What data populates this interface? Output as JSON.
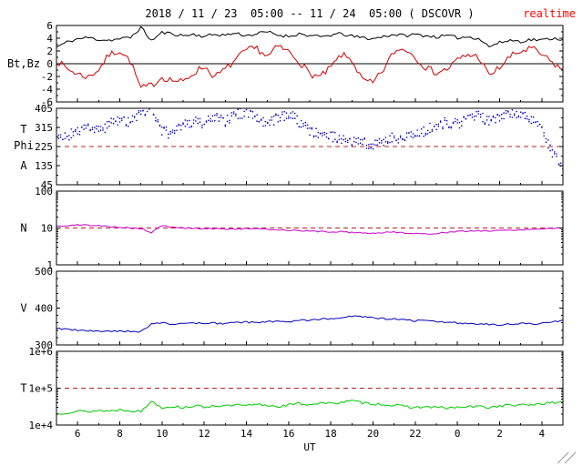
{
  "header": {
    "title": "2018 / 11 / 23  05:00 -- 11 / 24  05:00 ( DSCOVR )",
    "realtime_label": "realtime"
  },
  "style": {
    "realtime_color": "#ff0000",
    "refline_color": "#bb2222",
    "frame_color": "#000000",
    "background": "#ffffff"
  },
  "chart_data": {
    "type": "multi-panel-time-series",
    "title": "2018 / 11 / 23  05:00 -- 11 / 24  05:00 ( DSCOVR )",
    "xlabel": "UT",
    "x_axis": {
      "xmin": 5,
      "xmax": 29,
      "minor_step": 1,
      "x": [
        5,
        5.5,
        6,
        6.5,
        7,
        7.5,
        8,
        8.5,
        9,
        9.5,
        10,
        10.5,
        11,
        11.5,
        12,
        12.5,
        13,
        13.5,
        14,
        14.5,
        15,
        15.5,
        16,
        16.5,
        17,
        17.5,
        18,
        18.5,
        19,
        19.5,
        20,
        20.5,
        21,
        21.5,
        22,
        22.5,
        23,
        23.5,
        24,
        24.5,
        25,
        25.5,
        26,
        26.5,
        27,
        27.5,
        28,
        28.5,
        29
      ],
      "ticks": [
        {
          "v": 6,
          "label": "6"
        },
        {
          "v": 8,
          "label": "8"
        },
        {
          "v": 10,
          "label": "10"
        },
        {
          "v": 12,
          "label": "12"
        },
        {
          "v": 14,
          "label": "14"
        },
        {
          "v": 16,
          "label": "16"
        },
        {
          "v": 18,
          "label": "18"
        },
        {
          "v": 20,
          "label": "20"
        },
        {
          "v": 22,
          "label": "22"
        },
        {
          "v": 24,
          "label": "0"
        },
        {
          "v": 26,
          "label": "2"
        },
        {
          "v": 28,
          "label": "4"
        }
      ]
    },
    "panels": [
      {
        "id": "bt-bz",
        "type": "line",
        "left_labels": [
          "Bt,Bz"
        ],
        "log": false,
        "ylim": [
          -6,
          6
        ],
        "yminor_step": 1,
        "yticks": [
          {
            "v": 6,
            "label": "6"
          },
          {
            "v": 4,
            "label": "4"
          },
          {
            "v": 2,
            "label": "2"
          },
          {
            "v": 0,
            "label": "0"
          },
          {
            "v": -2,
            "label": "-2"
          },
          {
            "v": -4,
            "label": "-4"
          },
          {
            "v": -6,
            "label": "-6"
          }
        ],
        "solid_hline": 0,
        "series": [
          {
            "name": "Bt",
            "color": "#000000",
            "noise": 0.25,
            "seed": 11,
            "values": [
              2.6,
              3.4,
              3.9,
              4.1,
              3.8,
              3.7,
              3.9,
              4.1,
              5.7,
              3.6,
              4.9,
              4.7,
              4.4,
              4.6,
              4.3,
              4.6,
              4.5,
              4.8,
              4.4,
              4.7,
              5.0,
              4.5,
              4.3,
              4.7,
              4.4,
              4.2,
              4.5,
              4.7,
              4.3,
              4.1,
              3.9,
              4.3,
              4.6,
              4.4,
              4.6,
              4.4,
              4.2,
              4.4,
              4.1,
              4.2,
              4.0,
              2.7,
              3.3,
              3.7,
              3.5,
              3.8,
              3.7,
              4.0,
              3.8
            ]
          },
          {
            "name": "Bz",
            "color": "#cc0000",
            "noise": 0.55,
            "seed": 7,
            "values": [
              0.5,
              -0.8,
              -1.6,
              -2.1,
              -0.9,
              1.4,
              2.1,
              0.4,
              -3.9,
              -3.4,
              -2.1,
              -2.6,
              -2.9,
              -1.4,
              -0.4,
              -2.1,
              -0.9,
              0.6,
              2.1,
              2.4,
              1.1,
              2.7,
              1.9,
              0.4,
              -1.6,
              -2.1,
              -0.6,
              1.4,
              0.6,
              -2.6,
              -3.1,
              -0.9,
              1.9,
              2.4,
              1.1,
              -0.6,
              -1.4,
              -0.9,
              0.6,
              1.4,
              1.1,
              -1.9,
              -0.6,
              1.1,
              1.9,
              2.4,
              1.4,
              0.1,
              -0.9
            ]
          }
        ]
      },
      {
        "id": "phi-angle",
        "type": "scatter",
        "left_labels": [
          "T",
          "Phi",
          "A"
        ],
        "log": false,
        "ylim": [
          45,
          405
        ],
        "yminor_step": 45,
        "yticks": [
          {
            "v": 405,
            "label": "405"
          },
          {
            "v": 315,
            "label": "315"
          },
          {
            "v": 225,
            "label": "225"
          },
          {
            "v": 135,
            "label": "135"
          },
          {
            "v": 45,
            "label": "45"
          }
        ],
        "dashed_hline": 225,
        "series": [
          {
            "name": "Phi",
            "color": "#0000bb",
            "style": "dots",
            "noise": 25,
            "seed": 3,
            "values": [
              290,
              272,
              300,
              312,
              296,
              330,
              358,
              342,
              388,
              402,
              302,
              282,
              322,
              348,
              332,
              362,
              342,
              372,
              390,
              352,
              332,
              362,
              378,
              342,
              302,
              282,
              270,
              262,
              252,
              242,
              232,
              252,
              270,
              262,
              282,
              302,
              322,
              340,
              332,
              352,
              368,
              342,
              362,
              380,
              370,
              352,
              300,
              200,
              120
            ]
          }
        ]
      },
      {
        "id": "density",
        "type": "line",
        "left_labels": [
          "N"
        ],
        "log": true,
        "ylim": [
          1,
          100
        ],
        "yticks": [
          {
            "v": 100,
            "label": "100"
          },
          {
            "v": 10,
            "label": "10"
          },
          {
            "v": 1,
            "label": "1"
          }
        ],
        "dashed_hline": 10,
        "series": [
          {
            "name": "N",
            "color": "#cc00cc",
            "noise": 0.018,
            "seed": 5,
            "values": [
              11,
              11.5,
              12,
              12,
              11.5,
              11,
              10.5,
              10,
              9.5,
              7.5,
              11.5,
              10.5,
              10,
              9.8,
              9.5,
              9.7,
              9.5,
              9.3,
              9.6,
              9.4,
              9.2,
              9.0,
              8.8,
              8.5,
              8.3,
              8.0,
              7.8,
              8.0,
              7.6,
              7.4,
              7.2,
              7.5,
              7.8,
              7.4,
              7.0,
              6.8,
              7.2,
              7.6,
              8.0,
              8.2,
              8.5,
              8.3,
              8.6,
              8.8,
              9.0,
              9.2,
              9.5,
              9.8,
              10.2
            ]
          }
        ]
      },
      {
        "id": "speed",
        "type": "line",
        "left_labels": [
          "V"
        ],
        "log": false,
        "ylim": [
          300,
          500
        ],
        "yminor_step": 20,
        "yticks": [
          {
            "v": 500,
            "label": "500"
          },
          {
            "v": 400,
            "label": "400"
          },
          {
            "v": 300,
            "label": "300"
          }
        ],
        "series": [
          {
            "name": "V",
            "color": "#0000bb",
            "noise": 2.5,
            "seed": 9,
            "values": [
              345,
              342,
              340,
              338,
              337,
              336,
              338,
              337,
              336,
              358,
              360,
              356,
              358,
              360,
              357,
              359,
              358,
              360,
              362,
              360,
              363,
              365,
              363,
              366,
              368,
              370,
              372,
              375,
              378,
              376,
              373,
              371,
              370,
              368,
              366,
              365,
              363,
              362,
              360,
              358,
              357,
              356,
              355,
              356,
              358,
              357,
              359,
              362,
              368
            ]
          }
        ]
      },
      {
        "id": "temperature",
        "type": "line",
        "left_labels": [
          "T"
        ],
        "log": true,
        "ylim": [
          10000,
          1000000
        ],
        "yticks": [
          {
            "v": 1000000,
            "label": "1e+6"
          },
          {
            "v": 100000,
            "label": "1e+5"
          },
          {
            "v": 10000,
            "label": "1e+4"
          }
        ],
        "dashed_hline": 100000,
        "series": [
          {
            "name": "T",
            "color": "#00cc00",
            "noise": 0.035,
            "seed": 13,
            "values": [
              20000,
              22000,
              24000,
              23000,
              25000,
              24000,
              26000,
              25000,
              23000,
              45000,
              30000,
              32000,
              30000,
              33000,
              31000,
              34000,
              32000,
              35000,
              33000,
              36000,
              34000,
              32000,
              35000,
              38000,
              36000,
              40000,
              38000,
              42000,
              45000,
              40000,
              38000,
              36000,
              34000,
              32000,
              30000,
              31000,
              30000,
              29000,
              30000,
              31000,
              32000,
              30000,
              33000,
              35000,
              34000,
              36000,
              38000,
              40000,
              42000
            ]
          }
        ]
      }
    ]
  }
}
